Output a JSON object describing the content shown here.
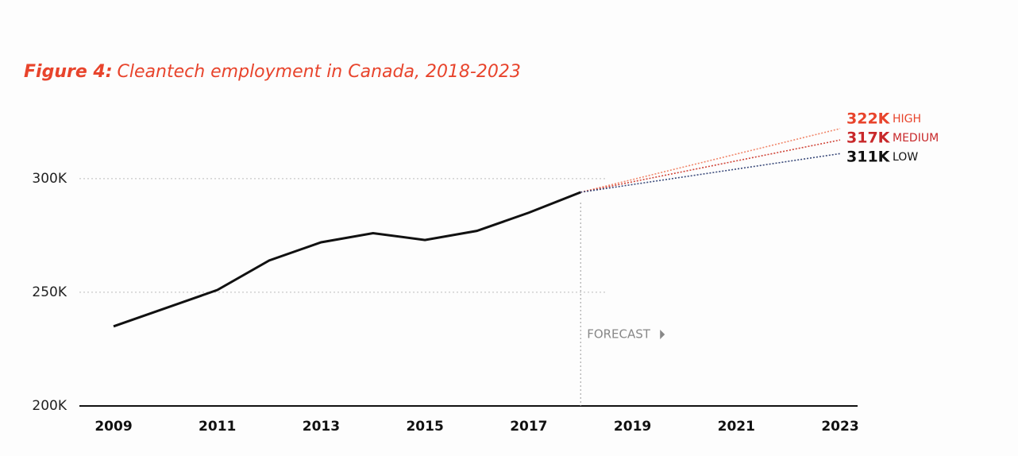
{
  "chart_data": {
    "type": "line",
    "title_label": "Figure 4:",
    "title": "Cleantech employment in Canada, 2018-2023",
    "x": [
      2009,
      2010,
      2011,
      2012,
      2013,
      2014,
      2015,
      2016,
      2017,
      2018
    ],
    "values": [
      235000,
      243000,
      251000,
      264000,
      272000,
      276000,
      273000,
      277000,
      285000,
      294000
    ],
    "color": "#111111",
    "forecast": [
      {
        "name": "HIGH",
        "color": "#f0866a",
        "label_color": "#e8442c",
        "x": [
          2018,
          2023
        ],
        "values": [
          294000,
          322000
        ],
        "value_labels": [
          null,
          "322K"
        ]
      },
      {
        "name": "MEDIUM",
        "color": "#d0463a",
        "label_color": "#c8282a",
        "x": [
          2018,
          2023
        ],
        "values": [
          294000,
          317000
        ],
        "value_labels": [
          null,
          "317K"
        ]
      },
      {
        "name": "LOW",
        "color": "#3a4a7a",
        "label_color": "#111111",
        "x": [
          2018,
          2023
        ],
        "values": [
          294000,
          311000
        ],
        "value_labels": [
          null,
          "311K"
        ]
      }
    ],
    "annotation": "FORECAST",
    "annotation_x": 2018,
    "xlim": [
      2009,
      2023
    ],
    "xticks": [
      2009,
      2011,
      2013,
      2015,
      2017,
      2019,
      2021,
      2023
    ],
    "ylim": [
      200000,
      330000
    ],
    "yticks": [
      {
        "value": 200000,
        "label": "200K"
      },
      {
        "value": 250000,
        "label": "250K"
      },
      {
        "value": 300000,
        "label": "300K"
      }
    ],
    "grid": true
  }
}
